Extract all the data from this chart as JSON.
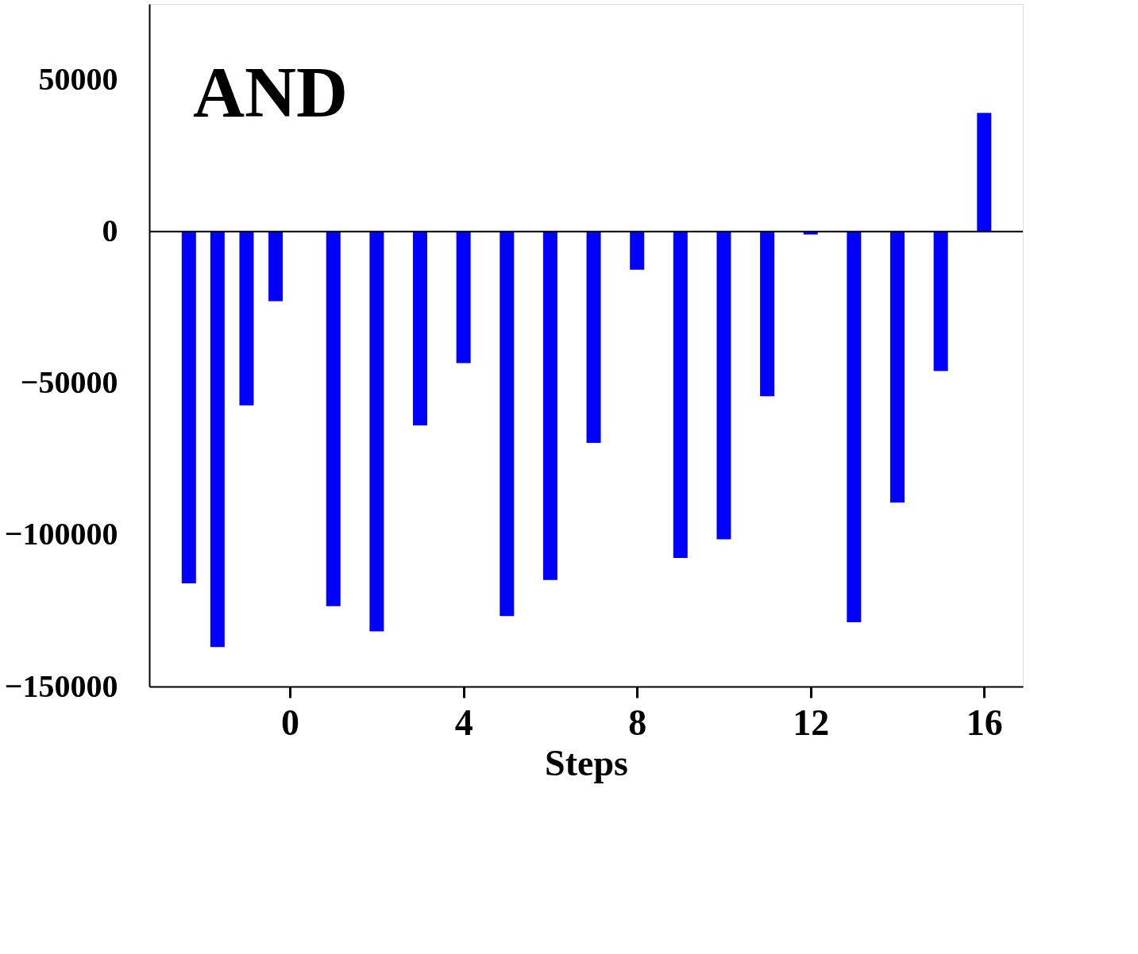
{
  "chart_data": {
    "type": "bar",
    "xlabel": "Steps",
    "annotations": [
      "AND"
    ],
    "x": [
      -2.33,
      -1.67,
      -1,
      -0.33,
      1,
      2,
      3,
      4,
      5,
      6,
      7,
      8,
      9,
      10,
      11,
      12,
      13,
      14,
      15,
      16
    ],
    "series": [
      {
        "color": "#0000ff",
        "values": [
          -116000,
          -137000,
          -57300,
          -23000,
          -123500,
          -131800,
          -63900,
          -43400,
          -126800,
          -114900,
          -69700,
          -12600,
          -107600,
          -101500,
          -54300,
          -1000,
          -128800,
          -89400,
          -46000,
          39100
        ]
      }
    ],
    "xlim": [
      -3.15,
      16.8
    ],
    "xticks": [
      0,
      4,
      8,
      12,
      16
    ],
    "ylim": [
      -150000,
      75000
    ],
    "yticks": [
      -150000,
      -100000,
      -50000,
      0,
      50000
    ],
    "ref_lines": [
      {
        "axis": "y",
        "value": 0,
        "color": "#000000"
      }
    ],
    "grid": false
  }
}
